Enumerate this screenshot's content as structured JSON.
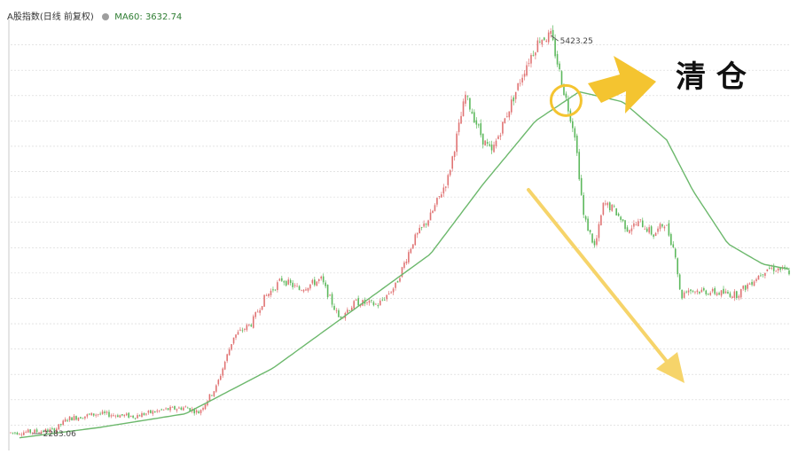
{
  "header": {
    "title": "A股指数(日线 前复权)",
    "ma_label": "MA60: 3632.74"
  },
  "annotations": {
    "high_label": "5423.25",
    "low_label": "2283.06",
    "action_label": "清 仓"
  },
  "colors": {
    "up": "#e07373",
    "down": "#5cb85c",
    "ma": "#6cb86c",
    "highlight": "#f4c430",
    "grid": "#d4d4d4"
  },
  "chart_data": {
    "type": "candlestick",
    "title": "A股指数(日线 前复权)",
    "ma_period": 60,
    "ma_current": 3632.74,
    "high": 5423.25,
    "low": 2283.06,
    "ylim": [
      2150,
      5550
    ],
    "grid": true,
    "price_path": [
      [
        0,
        2290
      ],
      [
        30,
        2300
      ],
      [
        50,
        2310
      ],
      [
        65,
        2400
      ],
      [
        100,
        2440
      ],
      [
        140,
        2420
      ],
      [
        175,
        2470
      ],
      [
        200,
        2490
      ],
      [
        215,
        2450
      ],
      [
        235,
        2650
      ],
      [
        255,
        3050
      ],
      [
        275,
        3150
      ],
      [
        290,
        3350
      ],
      [
        310,
        3500
      ],
      [
        330,
        3420
      ],
      [
        355,
        3500
      ],
      [
        375,
        3200
      ],
      [
        395,
        3320
      ],
      [
        420,
        3300
      ],
      [
        440,
        3450
      ],
      [
        460,
        3800
      ],
      [
        480,
        4000
      ],
      [
        500,
        4300
      ],
      [
        520,
        4950
      ],
      [
        540,
        4600
      ],
      [
        550,
        4500
      ],
      [
        570,
        4850
      ],
      [
        590,
        5200
      ],
      [
        605,
        5400
      ],
      [
        618,
        5420
      ],
      [
        632,
        5000
      ],
      [
        645,
        4650
      ],
      [
        655,
        4000
      ],
      [
        668,
        3750
      ],
      [
        678,
        4100
      ],
      [
        690,
        4050
      ],
      [
        705,
        3900
      ],
      [
        720,
        3950
      ],
      [
        735,
        3850
      ],
      [
        748,
        3950
      ],
      [
        760,
        3700
      ],
      [
        766,
        3350
      ],
      [
        772,
        3420
      ],
      [
        800,
        3400
      ],
      [
        830,
        3380
      ],
      [
        850,
        3500
      ],
      [
        865,
        3590
      ],
      [
        880,
        3580
      ],
      [
        890,
        3560
      ]
    ],
    "ma60_path": [
      [
        10,
        2250
      ],
      [
        100,
        2330
      ],
      [
        200,
        2440
      ],
      [
        300,
        2800
      ],
      [
        400,
        3300
      ],
      [
        480,
        3700
      ],
      [
        540,
        4250
      ],
      [
        600,
        4750
      ],
      [
        650,
        4980
      ],
      [
        700,
        4900
      ],
      [
        750,
        4600
      ],
      [
        780,
        4200
      ],
      [
        820,
        3780
      ],
      [
        860,
        3620
      ],
      [
        890,
        3580
      ]
    ]
  }
}
